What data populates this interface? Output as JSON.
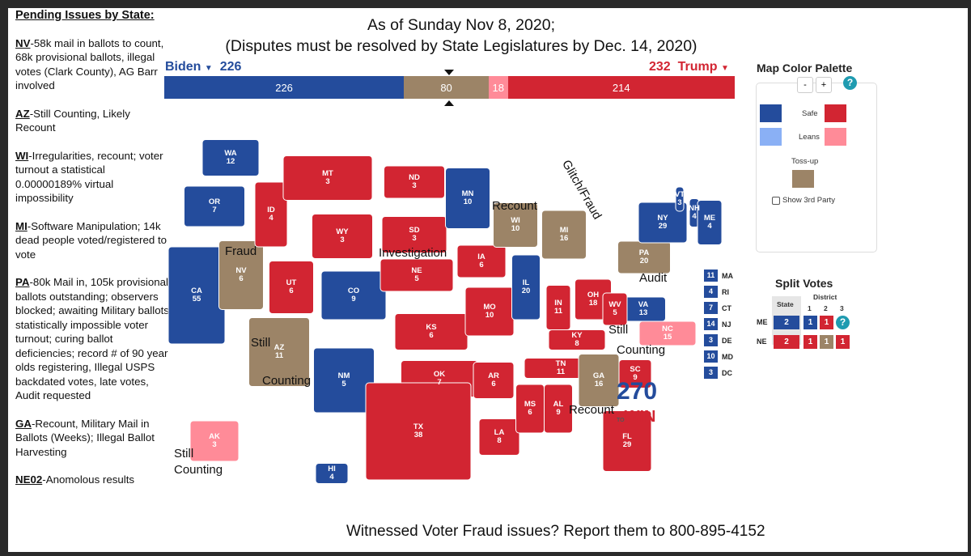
{
  "notes": {
    "heading": "Pending Issues by State:",
    "items": [
      {
        "state": "NV",
        "text": "-58k mail in ballots to count, 68k provisional ballots, illegal votes (Clark County), AG Barr involved"
      },
      {
        "state": "AZ",
        "text": "-Still Counting, Likely Recount"
      },
      {
        "state": "WI",
        "text": "-Irregularities, recount; voter turnout a statistical 0.00000189% virtual impossibility"
      },
      {
        "state": "MI",
        "text": "-Software Manipulation; 14k dead people voted/registered to vote"
      },
      {
        "state": "PA",
        "text": "-80k Mail in, 105k provisional ballots outstanding; observers blocked; awaiting Military ballots; statistically impossible voter turnout; curing ballot deficiencies; record # of 90 year olds registering, Illegal USPS backdated votes, late votes, Audit requested"
      },
      {
        "state": "GA",
        "text": "-Recount, Military Mail in Ballots (Weeks); Illegal Ballot Harvesting"
      },
      {
        "state": "NE02",
        "text": "-Anomolous results"
      }
    ]
  },
  "title": {
    "line1": "As of Sunday Nov 8, 2020;",
    "line2": "(Disputes must be resolved by State Legislatures by Dec. 14, 2020)"
  },
  "footer": "Witnessed Voter Fraud issues? Report them to 800-895-4152",
  "candidates": {
    "biden": {
      "name": "Biden",
      "votes": "226"
    },
    "trump": {
      "name": "Trump",
      "votes": "232"
    }
  },
  "colors": {
    "safe_dem": "#244c9c",
    "lean_dem": "#8ab0f5",
    "safe_rep": "#d22532",
    "lean_rep": "#ff8b98",
    "tossup": "#9c8467"
  },
  "bar": [
    {
      "label": "226",
      "value": 226,
      "color": "#244c9c"
    },
    {
      "label": "80",
      "value": 80,
      "color": "#9c8467"
    },
    {
      "label": "18",
      "value": 18,
      "color": "#ff8b98"
    },
    {
      "label": "214",
      "value": 214,
      "color": "#d22532"
    }
  ],
  "states": [
    {
      "abbr": "WA",
      "ev": "12",
      "c": "safe_dem"
    },
    {
      "abbr": "OR",
      "ev": "7",
      "c": "safe_dem"
    },
    {
      "abbr": "CA",
      "ev": "55",
      "c": "safe_dem"
    },
    {
      "abbr": "NV",
      "ev": "6",
      "c": "tossup"
    },
    {
      "abbr": "ID",
      "ev": "4",
      "c": "safe_rep"
    },
    {
      "abbr": "MT",
      "ev": "3",
      "c": "safe_rep"
    },
    {
      "abbr": "WY",
      "ev": "3",
      "c": "safe_rep"
    },
    {
      "abbr": "UT",
      "ev": "6",
      "c": "safe_rep"
    },
    {
      "abbr": "AZ",
      "ev": "11",
      "c": "tossup"
    },
    {
      "abbr": "CO",
      "ev": "9",
      "c": "safe_dem"
    },
    {
      "abbr": "NM",
      "ev": "5",
      "c": "safe_dem"
    },
    {
      "abbr": "ND",
      "ev": "3",
      "c": "safe_rep"
    },
    {
      "abbr": "SD",
      "ev": "3",
      "c": "safe_rep"
    },
    {
      "abbr": "NE",
      "ev": "5",
      "c": "safe_rep"
    },
    {
      "abbr": "KS",
      "ev": "6",
      "c": "safe_rep"
    },
    {
      "abbr": "OK",
      "ev": "7",
      "c": "safe_rep"
    },
    {
      "abbr": "TX",
      "ev": "38",
      "c": "safe_rep"
    },
    {
      "abbr": "MN",
      "ev": "10",
      "c": "safe_dem"
    },
    {
      "abbr": "IA",
      "ev": "6",
      "c": "safe_rep"
    },
    {
      "abbr": "MO",
      "ev": "10",
      "c": "safe_rep"
    },
    {
      "abbr": "AR",
      "ev": "6",
      "c": "safe_rep"
    },
    {
      "abbr": "LA",
      "ev": "8",
      "c": "safe_rep"
    },
    {
      "abbr": "WI",
      "ev": "10",
      "c": "tossup"
    },
    {
      "abbr": "IL",
      "ev": "20",
      "c": "safe_dem"
    },
    {
      "abbr": "MI",
      "ev": "16",
      "c": "tossup"
    },
    {
      "abbr": "IN",
      "ev": "11",
      "c": "safe_rep"
    },
    {
      "abbr": "OH",
      "ev": "18",
      "c": "safe_rep"
    },
    {
      "abbr": "KY",
      "ev": "8",
      "c": "safe_rep"
    },
    {
      "abbr": "TN",
      "ev": "11",
      "c": "safe_rep"
    },
    {
      "abbr": "MS",
      "ev": "6",
      "c": "safe_rep"
    },
    {
      "abbr": "AL",
      "ev": "9",
      "c": "safe_rep"
    },
    {
      "abbr": "GA",
      "ev": "16",
      "c": "tossup"
    },
    {
      "abbr": "FL",
      "ev": "29",
      "c": "safe_rep"
    },
    {
      "abbr": "SC",
      "ev": "9",
      "c": "safe_rep"
    },
    {
      "abbr": "NC",
      "ev": "15",
      "c": "lean_rep"
    },
    {
      "abbr": "VA",
      "ev": "13",
      "c": "safe_dem"
    },
    {
      "abbr": "WV",
      "ev": "5",
      "c": "safe_rep"
    },
    {
      "abbr": "PA",
      "ev": "20",
      "c": "tossup"
    },
    {
      "abbr": "NY",
      "ev": "29",
      "c": "safe_dem"
    },
    {
      "abbr": "VT",
      "ev": "3",
      "c": "safe_dem"
    },
    {
      "abbr": "NH",
      "ev": "4",
      "c": "safe_dem"
    },
    {
      "abbr": "ME",
      "ev": "4",
      "c": "safe_dem"
    },
    {
      "abbr": "AK",
      "ev": "3",
      "c": "lean_rep"
    },
    {
      "abbr": "HI",
      "ev": "4",
      "c": "safe_dem"
    }
  ],
  "northeast": [
    {
      "ev": "11",
      "abbr": "MA"
    },
    {
      "ev": "4",
      "abbr": "RI"
    },
    {
      "ev": "7",
      "abbr": "CT"
    },
    {
      "ev": "14",
      "abbr": "NJ"
    },
    {
      "ev": "3",
      "abbr": "DE"
    },
    {
      "ev": "10",
      "abbr": "MD"
    },
    {
      "ev": "3",
      "abbr": "DC"
    }
  ],
  "annotations": [
    "Glitch/Fraud",
    "Recount",
    "Fraud",
    "Investigation",
    "Audit",
    "Still",
    "Counting",
    "Still",
    "Counting",
    "Recount",
    "Still",
    "Counting"
  ],
  "logo": {
    "top": "270",
    "side": "TO",
    "bottom": "WIN"
  },
  "palette": {
    "title": "Map Color Palette",
    "minus": "-",
    "plus": "+",
    "help": "?",
    "safe": "Safe",
    "leans": "Leans",
    "tossup": "Toss-up",
    "third_party": "Show 3rd Party"
  },
  "split": {
    "title": "Split Votes",
    "state_col": "State",
    "district_col": "District",
    "districts": [
      "1",
      "2",
      "3"
    ],
    "rows": [
      {
        "state": "ME",
        "total": "2",
        "d": [
          "1",
          "1",
          "?"
        ]
      },
      {
        "state": "NE",
        "total": "2",
        "d": [
          "1",
          "1",
          "1"
        ]
      }
    ]
  }
}
